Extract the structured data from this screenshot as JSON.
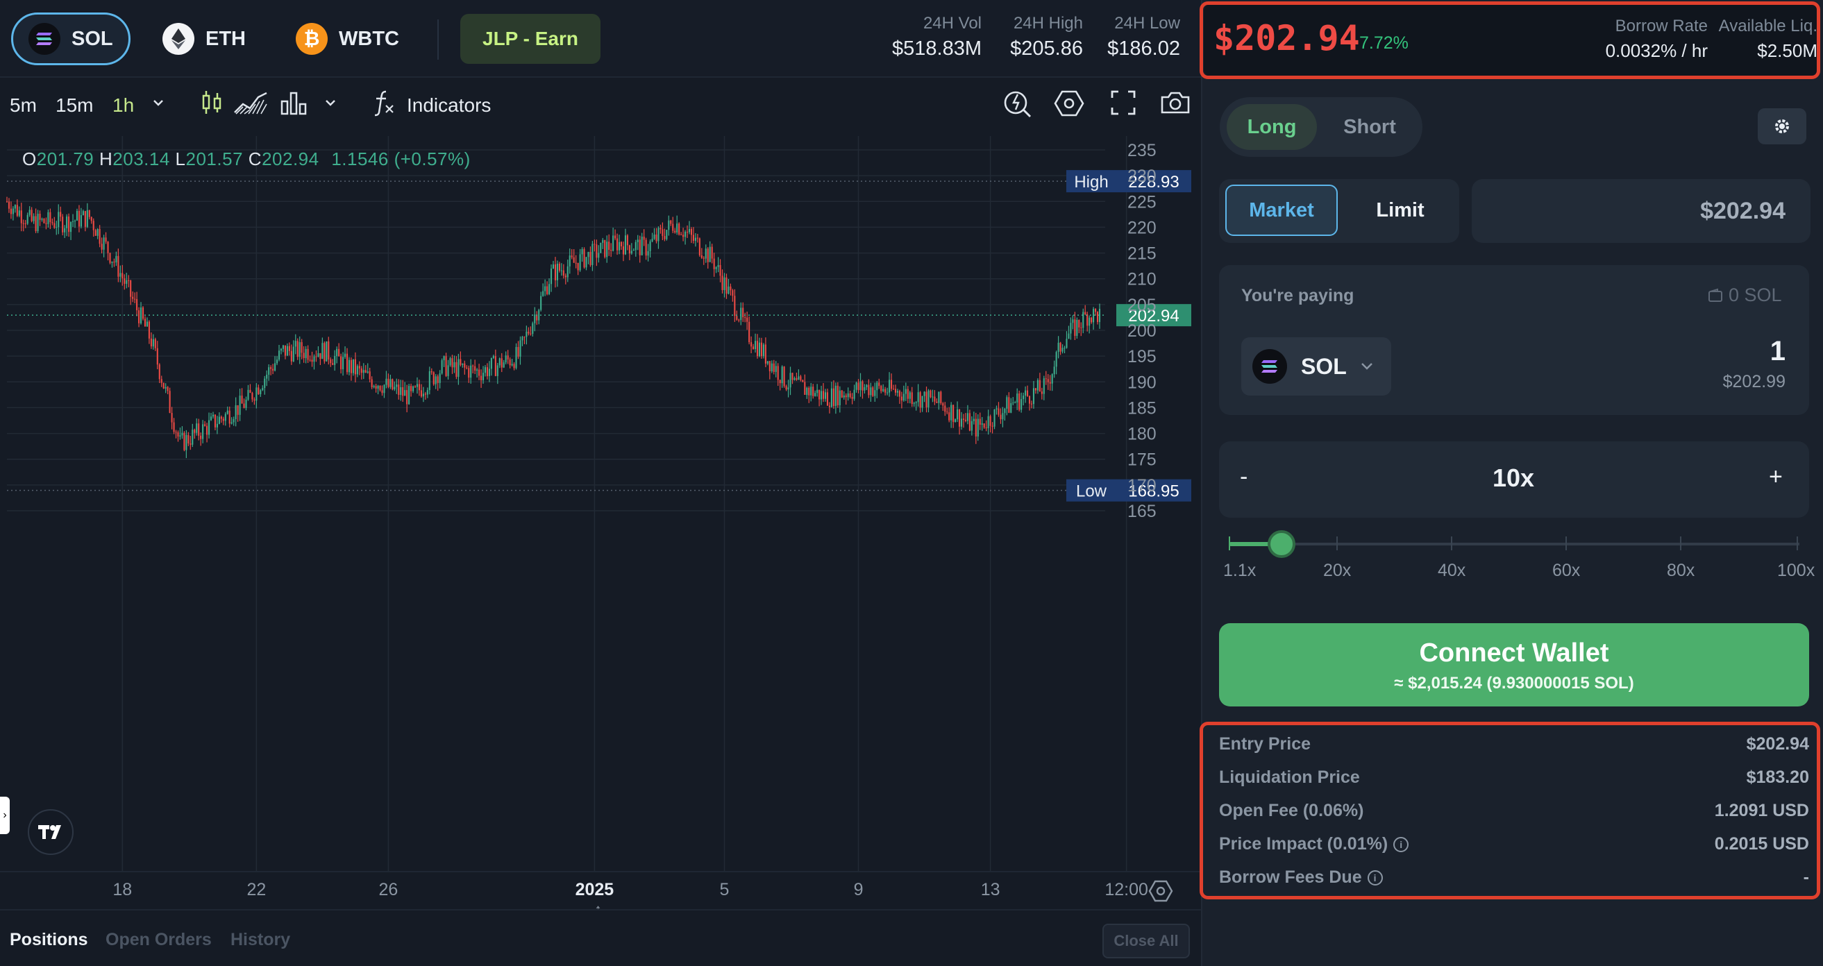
{
  "topbar": {
    "assets": [
      {
        "symbol": "SOL",
        "selected": true
      },
      {
        "symbol": "ETH",
        "selected": false
      },
      {
        "symbol": "WBTC",
        "selected": false
      }
    ],
    "earn_button": "JLP - Earn",
    "stats": [
      {
        "label": "24H Vol",
        "value": "$518.83M"
      },
      {
        "label": "24H High",
        "value": "$205.86"
      },
      {
        "label": "24H Low",
        "value": "$186.02"
      }
    ]
  },
  "toolbar": {
    "timeframes": [
      "5m",
      "15m",
      "1h"
    ],
    "active_timeframe": "1h",
    "indicators_label": "Indicators",
    "icons": [
      "timeframe-dropdown-icon",
      "candlestick-icon",
      "area-chart-icon",
      "bar-chart-icon",
      "chart-type-dropdown-icon",
      "function-icon",
      "replay-icon",
      "settings-hex-icon",
      "fullscreen-icon",
      "camera-icon"
    ]
  },
  "ohlc": {
    "o_label": "O",
    "o": "201.79",
    "h_label": "H",
    "h": "203.14",
    "l_label": "L",
    "l": "201.57",
    "c_label": "C",
    "c": "202.94",
    "change": "1.1546 (+0.57%)"
  },
  "chart_data": {
    "type": "candlestick",
    "y_ticks": [
      "235",
      "230",
      "225",
      "220",
      "215",
      "210",
      "205",
      "200",
      "195",
      "190",
      "185",
      "180",
      "175",
      "170",
      "165"
    ],
    "x_ticks": [
      "18",
      "22",
      "26",
      "2025",
      "5",
      "9",
      "13",
      "12:00"
    ],
    "ylim": [
      163,
      236
    ],
    "high_marker": {
      "label": "High",
      "value": "228.93"
    },
    "low_marker": {
      "label": "Low",
      "value": "168.95"
    },
    "last_price": "202.94",
    "trend": [
      [
        0,
        225
      ],
      [
        12,
        221
      ],
      [
        28,
        221
      ],
      [
        40,
        222
      ],
      [
        54,
        212
      ],
      [
        70,
        198
      ],
      [
        84,
        178
      ],
      [
        100,
        182
      ],
      [
        116,
        186
      ],
      [
        134,
        196
      ],
      [
        154,
        196
      ],
      [
        174,
        191
      ],
      [
        196,
        187
      ],
      [
        212,
        193
      ],
      [
        230,
        192
      ],
      [
        248,
        195
      ],
      [
        264,
        211
      ],
      [
        296,
        217
      ],
      [
        310,
        216
      ],
      [
        324,
        221
      ],
      [
        342,
        214
      ],
      [
        360,
        199
      ],
      [
        378,
        190
      ],
      [
        398,
        187
      ],
      [
        416,
        189
      ],
      [
        434,
        188
      ],
      [
        452,
        186
      ],
      [
        470,
        181
      ],
      [
        488,
        186
      ],
      [
        504,
        189
      ],
      [
        512,
        198
      ],
      [
        524,
        203
      ],
      [
        530,
        202.94
      ]
    ],
    "x_tick_positions": [
      56,
      121,
      185,
      285,
      348,
      413,
      477,
      543
    ]
  },
  "bottom_tabs": [
    "Positions",
    "Open Orders",
    "History"
  ],
  "close_all": "Close All",
  "panel": {
    "price": "$202.94",
    "change": "7.72%",
    "borrow_rate_label": "Borrow Rate",
    "borrow_rate": "0.0032% / hr",
    "liquidity_label": "Available Liq.",
    "liquidity": "$2.50M",
    "long": "Long",
    "short": "Short",
    "market": "Market",
    "limit": "Limit",
    "order_price": "$202.94",
    "paying_label": "You're paying",
    "balance": "0 SOL",
    "token": "SOL",
    "amount": "1",
    "amount_usd": "$202.99",
    "leverage": "10x",
    "minus": "-",
    "plus": "+",
    "slider_labels": [
      "1.1x",
      "20x",
      "40x",
      "60x",
      "80x",
      "100x"
    ],
    "connect_label": "Connect Wallet",
    "connect_sub": "≈ $2,015.24 (9.930000015 SOL)",
    "details": [
      {
        "label": "Entry Price",
        "value": "$202.94",
        "info": false
      },
      {
        "label": "Liquidation Price",
        "value": "$183.20",
        "info": false
      },
      {
        "label": "Open Fee (0.06%)",
        "value": "1.2091 USD",
        "info": false
      },
      {
        "label": "Price Impact (0.01%)",
        "value": "0.2015 USD",
        "info": true
      },
      {
        "label": "Borrow Fees Due",
        "value": "-",
        "info": true
      }
    ]
  },
  "colors": {
    "up": "#3fae8e",
    "down": "#ee4b45",
    "accent": "#5db6ea",
    "highlight": "#e0402d"
  }
}
